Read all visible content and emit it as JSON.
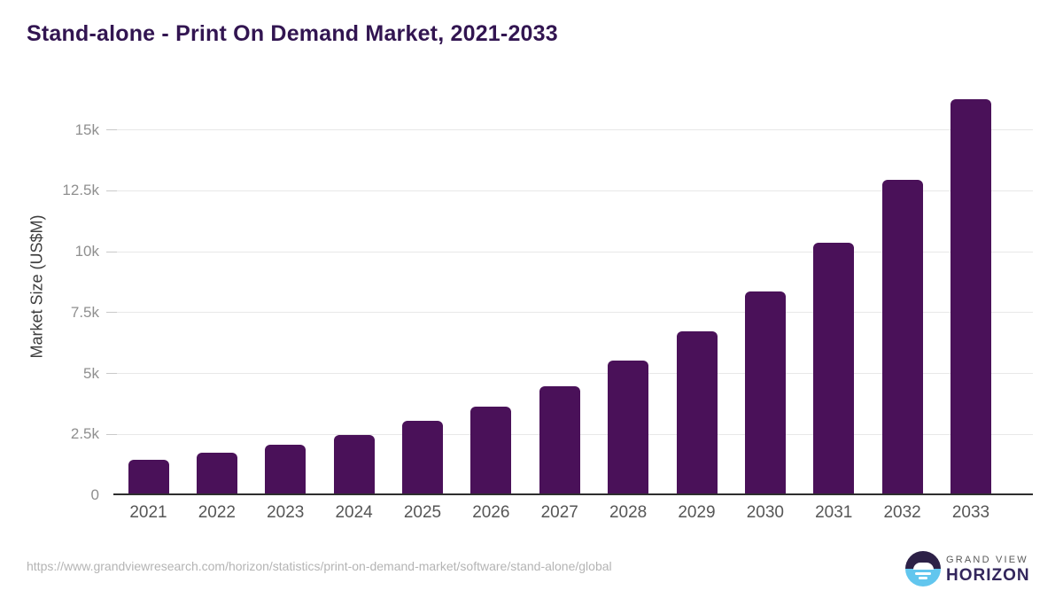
{
  "title": "Stand-alone - Print On Demand Market, 2021-2033",
  "chart_data": {
    "type": "bar",
    "title": "Stand-alone - Print On Demand Market, 2021-2033",
    "categories": [
      "2021",
      "2022",
      "2023",
      "2024",
      "2025",
      "2026",
      "2027",
      "2028",
      "2029",
      "2030",
      "2031",
      "2032",
      "2033"
    ],
    "values": [
      1450,
      1760,
      2080,
      2490,
      3040,
      3650,
      4460,
      5510,
      6720,
      8350,
      10370,
      12950,
      16250
    ],
    "xlabel": "",
    "ylabel": "Market Size (US$M)",
    "ylim": [
      0,
      16500
    ],
    "yticks": [
      {
        "label": "0",
        "value": 0
      },
      {
        "label": "2.5k",
        "value": 2500
      },
      {
        "label": "5k",
        "value": 5000
      },
      {
        "label": "7.5k",
        "value": 7500
      },
      {
        "label": "10k",
        "value": 10000
      },
      {
        "label": "12.5k",
        "value": 12500
      },
      {
        "label": "15k",
        "value": 15000
      }
    ],
    "grid": "horizontal",
    "legend": "none",
    "bar_color": "#4a1159"
  },
  "colors": {
    "title_text": "#321551",
    "bar": "#4a1159",
    "gridline": "#e8e8e8",
    "axis_line": "#2e2e2e",
    "y_tick_text": "#8f8f8f",
    "x_tick_text": "#565656",
    "source_text": "#b4b4b4",
    "logo_purple": "#2d2147",
    "logo_blue": "#62c6ee"
  },
  "footer": {
    "source_url": "https://www.grandviewresearch.com/horizon/statistics/print-on-demand-market/software/stand-alone/global",
    "logo": {
      "line1": "GRAND VIEW",
      "line2": "HORIZON"
    }
  }
}
